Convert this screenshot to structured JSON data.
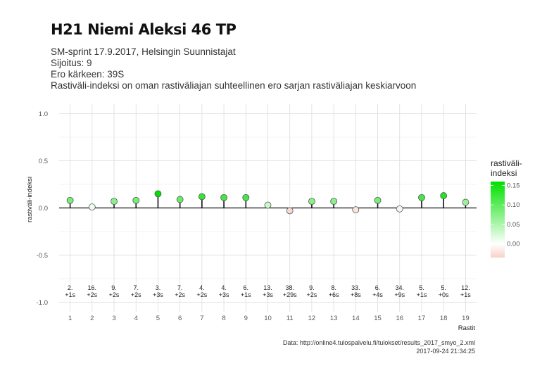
{
  "chart_data": {
    "type": "lollipop",
    "title": "H21 Niemi Aleksi 46 TP",
    "subtitle_lines": [
      "SM-sprint 17.9.2017, Helsingin Suunnistajat",
      "Sijoitus: 9",
      "Ero kärkeen: 39S",
      "Rastiväli-indeksi on oman rastiväliajan suhteellinen ero sarjan rastiväliajan keskiarvoon"
    ],
    "xlabel": "Rastit",
    "ylabel": "rastiväli-indeksi",
    "ylim": [
      -1.0,
      1.0
    ],
    "yticks": [
      {
        "value": 1.0,
        "label": "1.0"
      },
      {
        "value": 0.5,
        "label": "0.5"
      },
      {
        "value": 0.0,
        "label": "0.0"
      },
      {
        "value": -0.5,
        "label": "-0.5"
      },
      {
        "value": -1.0,
        "label": "-1.0"
      }
    ],
    "x": [
      1,
      2,
      3,
      4,
      5,
      6,
      7,
      8,
      9,
      10,
      11,
      12,
      13,
      14,
      15,
      16,
      17,
      18,
      19
    ],
    "x_labels": [
      "1",
      "2",
      "3",
      "4",
      "5",
      "6",
      "7",
      "8",
      "9",
      "10",
      "11",
      "12",
      "13",
      "14",
      "15",
      "16",
      "17",
      "18",
      "19"
    ],
    "values": [
      0.08,
      0.01,
      0.07,
      0.08,
      0.15,
      0.09,
      0.12,
      0.11,
      0.11,
      0.03,
      -0.03,
      0.07,
      0.07,
      -0.02,
      0.08,
      -0.01,
      0.11,
      0.13,
      0.06
    ],
    "ranks": [
      "2.",
      "16.",
      "9.",
      "7.",
      "3.",
      "7.",
      "4.",
      "4.",
      "6.",
      "13.",
      "38.",
      "9.",
      "8.",
      "33.",
      "6.",
      "34.",
      "5.",
      "5.",
      "12."
    ],
    "diffs": [
      "+1s",
      "+2s",
      "+2s",
      "+2s",
      "+3s",
      "+2s",
      "+2s",
      "+3s",
      "+1s",
      "+3s",
      "+29s",
      "+2s",
      "+6s",
      "+8s",
      "+4s",
      "+9s",
      "+1s",
      "+0s",
      "+1s"
    ],
    "annotation_y": -0.9,
    "grid": true,
    "legend": {
      "title_lines": [
        "rastiväli-",
        "indeksi"
      ],
      "placement": "right",
      "range": [
        -0.035,
        0.16
      ],
      "ticks": [
        {
          "value": 0.15,
          "label": "0.15"
        },
        {
          "value": 0.1,
          "label": "0.10"
        },
        {
          "value": 0.05,
          "label": "0.05"
        },
        {
          "value": 0.0,
          "label": "0.00"
        }
      ],
      "colors": {
        "low": "#f4b0a0",
        "mid": "#ffffff",
        "high": "#00e000"
      }
    },
    "caption_lines": [
      "Data: http://online4.tulospalvelu.fi/tulokset/results_2017_smyo_2.xml",
      "2017-09-24 21:34:25"
    ]
  }
}
